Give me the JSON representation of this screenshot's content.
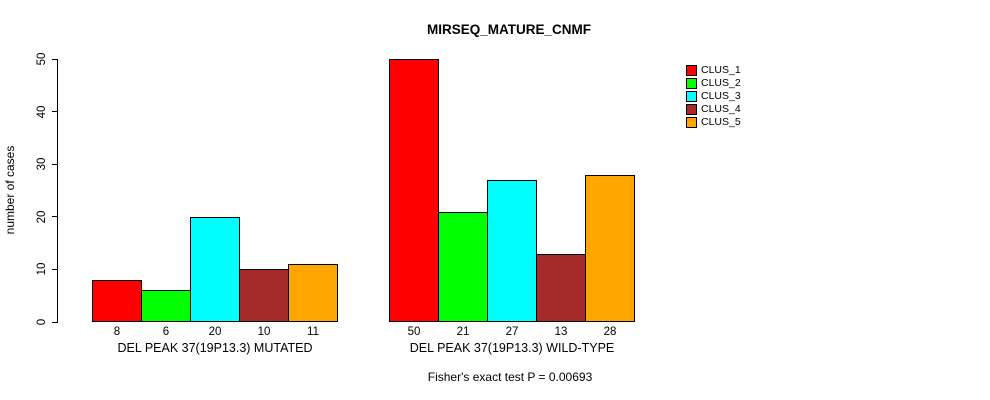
{
  "chart_data": {
    "type": "bar",
    "title": "MIRSEQ_MATURE_CNMF",
    "ylabel": "number of cases",
    "xlabel": "",
    "ylim": [
      0,
      50
    ],
    "yticks": [
      0,
      10,
      20,
      30,
      40,
      50
    ],
    "grid": false,
    "legend_position": "top-right",
    "background_color": "#ffffff",
    "bar_border_color": "#000000",
    "categories": [
      "DEL PEAK 37(19P13.3) MUTATED",
      "DEL PEAK 37(19P13.3) WILD-TYPE"
    ],
    "series": [
      {
        "name": "CLUS_1",
        "color": "#FF0000",
        "values": [
          8,
          50
        ]
      },
      {
        "name": "CLUS_2",
        "color": "#00FF00",
        "values": [
          6,
          21
        ]
      },
      {
        "name": "CLUS_3",
        "color": "#00FFFF",
        "values": [
          20,
          27
        ]
      },
      {
        "name": "CLUS_4",
        "color": "#A52A2A",
        "values": [
          10,
          13
        ]
      },
      {
        "name": "CLUS_5",
        "color": "#FFA500",
        "values": [
          11,
          28
        ]
      }
    ],
    "footnote": "Fisher's exact test P = 0.00693"
  }
}
